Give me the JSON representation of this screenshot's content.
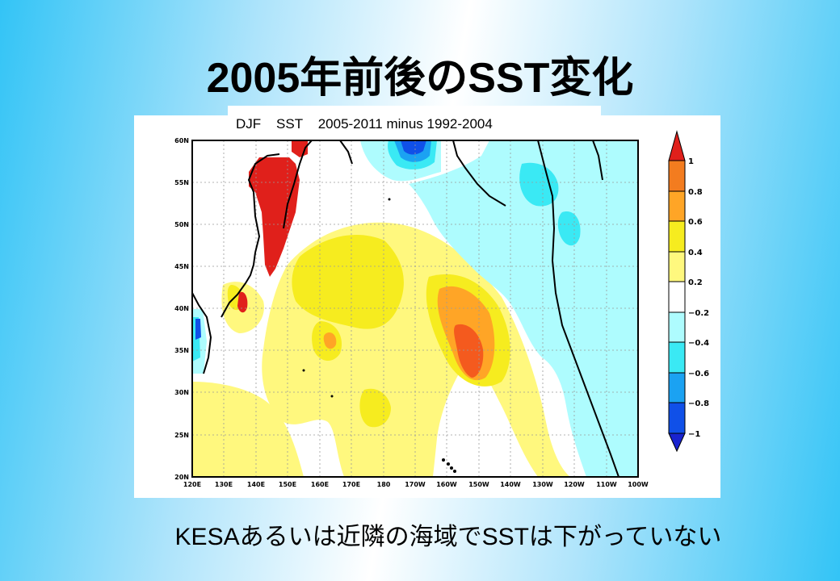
{
  "slide": {
    "title": "2005年前後のSST変化",
    "figure_caption": "DJF    SST    2005-2011 minus 1992-2004",
    "footer": "KESAあるいは近隣の海域でSSTは下がっていない"
  },
  "map": {
    "lat_labels": [
      "60N",
      "55N",
      "50N",
      "45N",
      "40N",
      "35N",
      "30N",
      "25N",
      "20N"
    ],
    "lon_labels": [
      "120E",
      "130E",
      "140E",
      "150E",
      "160E",
      "170E",
      "180",
      "170W",
      "160W",
      "150W",
      "140W",
      "130W",
      "120W",
      "110W",
      "100W"
    ],
    "colorbar_labels": [
      "1",
      "0.8",
      "0.6",
      "0.4",
      "0.2",
      "−0.2",
      "−0.4",
      "−0.6",
      "−0.8",
      "−1"
    ],
    "colorbar_colors": [
      "#e0201b",
      "#f37c1f",
      "#ffa526",
      "#f6ec1f",
      "#fff87e",
      "#ffffff",
      "#aefcfe",
      "#3ae9f4",
      "#1ba2f2",
      "#1050e8",
      "#1923cf"
    ],
    "colors": {
      "red": "#e0201b",
      "orange_red": "#f45a1e",
      "orange": "#ffa526",
      "yellow": "#f6ec1f",
      "light_yellow": "#fff87e",
      "light_cyan": "#aefcfe",
      "cyan": "#3ae9f4",
      "blue": "#1ba2f2",
      "dark_blue": "#1050e8"
    }
  }
}
